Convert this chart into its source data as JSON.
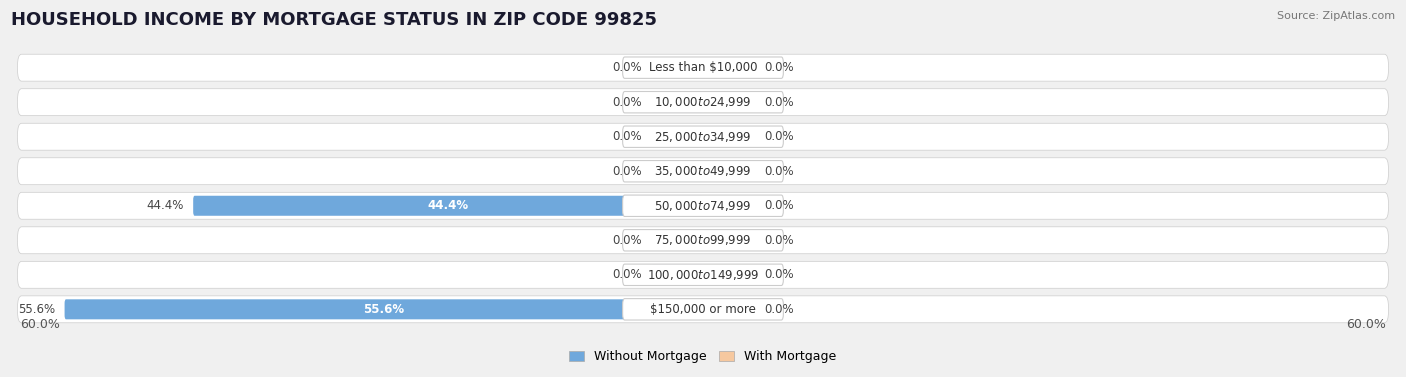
{
  "title": "HOUSEHOLD INCOME BY MORTGAGE STATUS IN ZIP CODE 99825",
  "source": "Source: ZipAtlas.com",
  "categories": [
    "Less than $10,000",
    "$10,000 to $24,999",
    "$25,000 to $34,999",
    "$35,000 to $49,999",
    "$50,000 to $74,999",
    "$75,000 to $99,999",
    "$100,000 to $149,999",
    "$150,000 or more"
  ],
  "without_mortgage": [
    0.0,
    0.0,
    0.0,
    0.0,
    44.4,
    0.0,
    0.0,
    55.6
  ],
  "with_mortgage": [
    0.0,
    0.0,
    0.0,
    0.0,
    0.0,
    0.0,
    0.0,
    0.0
  ],
  "color_without": "#6fa8dc",
  "color_with": "#f6c89f",
  "color_without_stub": "#aecde8",
  "color_with_stub": "#f9dfc4",
  "xlim": 60.0,
  "stub_size": 4.5,
  "background_color": "#f0f0f0",
  "row_bg_color": "#e8e8ec",
  "title_fontsize": 13,
  "label_fontsize": 8.5,
  "legend_fontsize": 9,
  "tick_fontsize": 9,
  "value_label_fontsize": 8.5
}
